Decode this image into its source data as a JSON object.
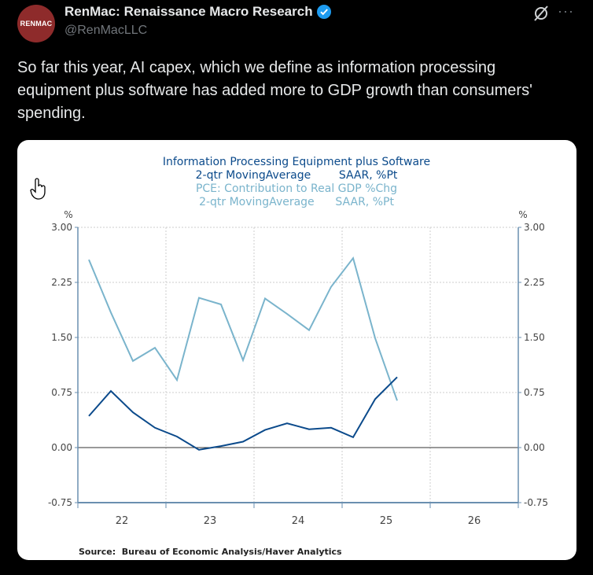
{
  "tweet": {
    "avatar_text": "RENMAC",
    "display_name": "RenMac: Renaissance Macro Research",
    "handle": "@RenMacLLC",
    "verified": true,
    "icons": [
      "grok-icon",
      "more-icon",
      "verified-badge-icon",
      "hand-cursor-icon"
    ],
    "body": "So far this year, AI capex, which we define as information processing equipment plus software has added more to GDP growth than consumers' spending."
  },
  "colors": {
    "series_dark": "#0b4a8b",
    "series_light": "#7ab4cc",
    "verified": "#1d9bf0",
    "avatar": "#8e2b2b"
  },
  "chart_data": {
    "type": "line",
    "title_lines": [
      {
        "text": "Information Processing Equipment plus Software",
        "series": 0
      },
      {
        "text": "2-qtr MovingAverage        SAAR, %Pt",
        "series": 0
      },
      {
        "text": "PCE: Contribution to Real GDP %Chg",
        "series": 1
      },
      {
        "text": "2-qtr MovingAverage      SAAR, %Pt",
        "series": 1
      }
    ],
    "ylabel_left": "%",
    "ylabel_right": "%",
    "ylim": [
      -0.75,
      3.0
    ],
    "yticks": [
      "3.00",
      "2.25",
      "1.50",
      "0.75",
      "0.00",
      "-0.75"
    ],
    "xlim": [
      2021.75,
      2026.75
    ],
    "xtick_labels": [
      "22",
      "23",
      "24",
      "25",
      "26"
    ],
    "grid": true,
    "x": [
      "2021Q4",
      "2022Q1",
      "2022Q2",
      "2022Q3",
      "2022Q4",
      "2023Q1",
      "2023Q2",
      "2023Q3",
      "2023Q4",
      "2024Q1",
      "2024Q2",
      "2024Q3",
      "2024Q4",
      "2025Q1",
      "2025Q2"
    ],
    "series": [
      {
        "name": "Information Processing Equipment plus Software",
        "values": [
          0.43,
          0.77,
          0.48,
          0.27,
          0.15,
          -0.03,
          0.02,
          0.08,
          0.24,
          0.33,
          0.25,
          0.27,
          0.14,
          0.66,
          0.96
        ]
      },
      {
        "name": "PCE: Contribution to Real GDP %Chg",
        "values": [
          2.56,
          1.84,
          1.18,
          1.36,
          0.92,
          2.04,
          1.95,
          1.19,
          2.03,
          1.82,
          1.6,
          2.19,
          2.58,
          1.49,
          0.64
        ]
      }
    ],
    "source": "Source:  Bureau of Economic Analysis/Haver Analytics"
  }
}
